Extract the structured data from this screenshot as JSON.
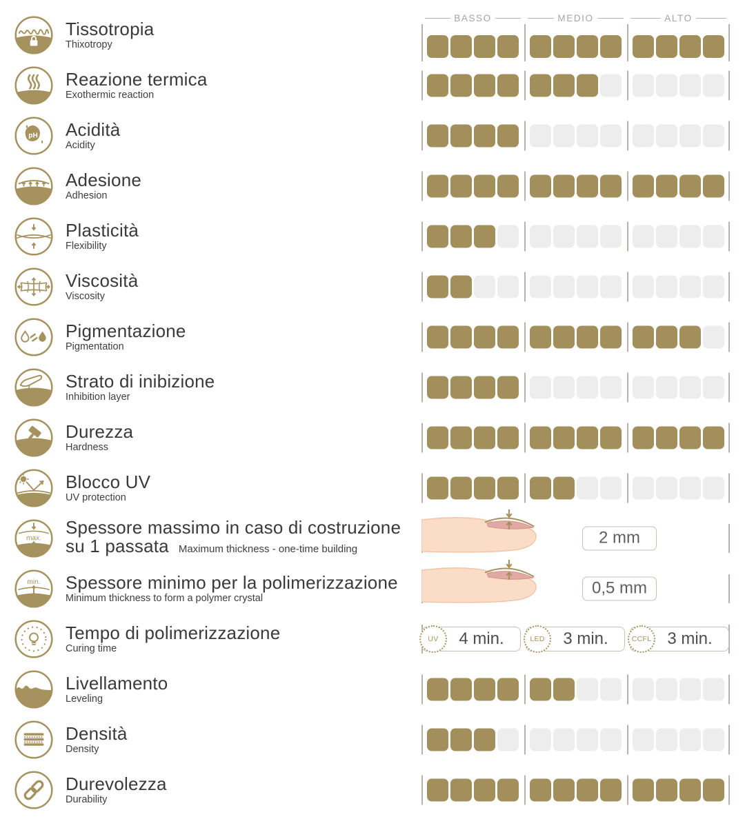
{
  "header": {
    "levels": [
      "BASSO",
      "MEDIO",
      "ALTO"
    ]
  },
  "scale": {
    "max": 12,
    "group_size": 4
  },
  "colors": {
    "gold": "#a28f5c",
    "icon_gold": "#a6925f",
    "empty_square": "#ededed",
    "tick": "#b8b2aa",
    "header_text": "#a4a4a4",
    "title_text": "#3a3a3a"
  },
  "rows": [
    {
      "type": "rating",
      "icon": "thixotropy-icon",
      "name": "Tissotropia",
      "name_en": "Thixotropy",
      "value": 12,
      "show_header": true
    },
    {
      "type": "rating",
      "icon": "exothermic-reaction-icon",
      "name": "Reazione termica",
      "name_en": "Exothermic reaction",
      "value": 7
    },
    {
      "type": "rating",
      "icon": "acidity-icon",
      "name": "Acidità",
      "name_en": "Acidity",
      "value": 4
    },
    {
      "type": "rating",
      "icon": "adhesion-icon",
      "name": "Adesione",
      "name_en": "Adhesion",
      "value": 12
    },
    {
      "type": "rating",
      "icon": "flexibility-icon",
      "name": "Plasticità",
      "name_en": "Flexibility",
      "value": 3
    },
    {
      "type": "rating",
      "icon": "viscosity-icon",
      "name": "Viscosità",
      "name_en": "Viscosity",
      "value": 2
    },
    {
      "type": "rating",
      "icon": "pigmentation-icon",
      "name": "Pigmentazione",
      "name_en": "Pigmentation",
      "value": 11
    },
    {
      "type": "rating",
      "icon": "inhibition-layer-icon",
      "name": "Strato di inibizione",
      "name_en": "Inhibition layer",
      "value": 4
    },
    {
      "type": "rating",
      "icon": "hardness-icon",
      "name": "Durezza",
      "name_en": "Hardness",
      "value": 12
    },
    {
      "type": "rating",
      "icon": "uv-protection-icon",
      "name": "Blocco UV",
      "name_en": "UV protection",
      "value": 6
    },
    {
      "type": "measure",
      "icon": "max-thickness-icon",
      "name": "Spessore massimo in caso di costruzione",
      "name2": "su 1 passata",
      "name_en": "Maximum thickness - one-time building",
      "en_inline": true,
      "value": "2 mm"
    },
    {
      "type": "measure",
      "icon": "min-thickness-icon",
      "name": "Spessore minimo per la polimerizzazione",
      "name_en": "Minimum thickness to form a polymer crystal",
      "value": "0,5 mm"
    },
    {
      "type": "curing",
      "icon": "curing-time-icon",
      "name": "Tempo di polimerizzazione",
      "name_en": "Curing time",
      "times": [
        {
          "lamp": "UV",
          "time": "4 min."
        },
        {
          "lamp": "LED",
          "time": "3 min."
        },
        {
          "lamp": "CCFL",
          "time": "3 min."
        }
      ]
    },
    {
      "type": "rating",
      "icon": "leveling-icon",
      "name": "Livellamento",
      "name_en": "Leveling",
      "value": 6
    },
    {
      "type": "rating",
      "icon": "density-icon",
      "name": "Densità",
      "name_en": "Density",
      "value": 3
    },
    {
      "type": "rating",
      "icon": "durability-icon",
      "name": "Durevolezza",
      "name_en": "Durability",
      "value": 12
    }
  ],
  "chart_data": {
    "type": "bar",
    "title": "",
    "xlabel": "",
    "ylabel": "",
    "ylim": [
      0,
      12
    ],
    "scale_group_labels": [
      "BASSO",
      "MEDIO",
      "ALTO"
    ],
    "categories": [
      "Tissotropia",
      "Reazione termica",
      "Acidità",
      "Adesione",
      "Plasticità",
      "Viscosità",
      "Pigmentazione",
      "Strato di inibizione",
      "Durezza",
      "Blocco UV",
      "Livellamento",
      "Densità",
      "Durevolezza"
    ],
    "values": [
      12,
      7,
      4,
      12,
      3,
      2,
      11,
      4,
      12,
      6,
      6,
      3,
      12
    ],
    "extra_measures": {
      "Spessore massimo su 1 passata": "2 mm",
      "Spessore minimo per la polimerizzazione": "0,5 mm",
      "Tempo di polimerizzazione": {
        "UV": "4 min.",
        "LED": "3 min.",
        "CCFL": "3 min."
      }
    }
  }
}
